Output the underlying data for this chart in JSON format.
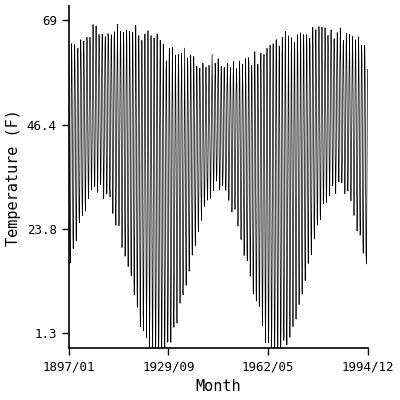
{
  "title": "",
  "xlabel": "Month",
  "ylabel": "Temperature (F)",
  "x_start_year": 1897,
  "x_start_month": 1,
  "x_end_year": 1994,
  "x_end_month": 12,
  "yticks": [
    1.3,
    23.8,
    46.4,
    69
  ],
  "ylim": [
    -2,
    72
  ],
  "xtick_labels": [
    "1897/01",
    "1929/09",
    "1962/05",
    "1994/12"
  ],
  "xtick_years": [
    1897,
    1929,
    1962,
    1994
  ],
  "xtick_months": [
    1,
    9,
    5,
    12
  ],
  "summer_mean": 63.0,
  "winter_mean": 15.0,
  "long_wave_amp": 18.0,
  "long_wave_periods": 2.5,
  "background_color": "#ffffff",
  "line_color": "#000000",
  "line_width": 0.5,
  "font_family": "monospace",
  "font_size": 9,
  "label_fontsize": 11,
  "figsize": [
    4.0,
    4.0
  ],
  "dpi": 100
}
